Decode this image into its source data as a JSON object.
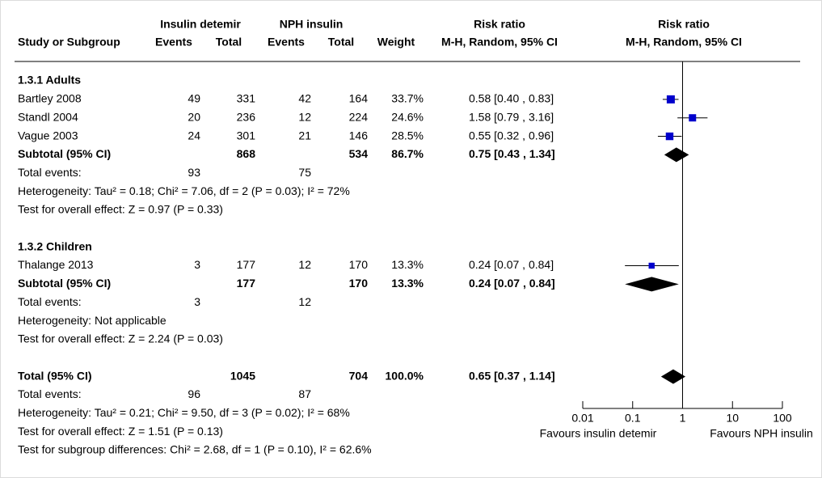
{
  "chart_data": {
    "type": "forest",
    "group_headers": [
      "Insulin detemir",
      "NPH insulin"
    ],
    "columns": [
      "Study or Subgroup",
      "Events",
      "Total",
      "Events",
      "Total",
      "Weight",
      "M-H, Random, 95% CI"
    ],
    "plot_title": "Risk ratio",
    "plot_method": "M-H, Random, 95% CI",
    "subgroups": [
      {
        "title": "1.3.1 Adults",
        "studies": [
          {
            "name": "Bartley 2008",
            "events1": 49,
            "total1": 331,
            "events2": 42,
            "total2": 164,
            "weight": 33.7,
            "weight_label": "33.7%",
            "rr": 0.58,
            "lo": 0.4,
            "hi": 0.83,
            "rr_label": "0.58 [0.40 , 0.83]"
          },
          {
            "name": "Standl 2004",
            "events1": 20,
            "total1": 236,
            "events2": 12,
            "total2": 224,
            "weight": 24.6,
            "weight_label": "24.6%",
            "rr": 1.58,
            "lo": 0.79,
            "hi": 3.16,
            "rr_label": "1.58 [0.79 , 3.16]"
          },
          {
            "name": "Vague 2003",
            "events1": 24,
            "total1": 301,
            "events2": 21,
            "total2": 146,
            "weight": 28.5,
            "weight_label": "28.5%",
            "rr": 0.55,
            "lo": 0.32,
            "hi": 0.96,
            "rr_label": "0.55 [0.32 , 0.96]"
          }
        ],
        "subtotal": {
          "name": "Subtotal (95% CI)",
          "total1": 868,
          "total2": 534,
          "weight": 86.7,
          "weight_label": "86.7%",
          "rr": 0.75,
          "lo": 0.43,
          "hi": 1.34,
          "rr_label": "0.75 [0.43 , 1.34]"
        },
        "events": {
          "name": "Total events:",
          "events1": 93,
          "events2": 75
        },
        "heterogeneity": "Heterogeneity: Tau² = 0.18; Chi² = 7.06, df = 2 (P = 0.03); I² = 72%",
        "overall_effect": "Test for overall effect: Z = 0.97 (P = 0.33)"
      },
      {
        "title": "1.3.2 Children",
        "studies": [
          {
            "name": "Thalange 2013",
            "events1": 3,
            "total1": 177,
            "events2": 12,
            "total2": 170,
            "weight": 13.3,
            "weight_label": "13.3%",
            "rr": 0.24,
            "lo": 0.07,
            "hi": 0.84,
            "rr_label": "0.24 [0.07 , 0.84]"
          }
        ],
        "subtotal": {
          "name": "Subtotal (95% CI)",
          "total1": 177,
          "total2": 170,
          "weight": 13.3,
          "weight_label": "13.3%",
          "rr": 0.24,
          "lo": 0.07,
          "hi": 0.84,
          "rr_label": "0.24 [0.07 , 0.84]"
        },
        "events": {
          "name": "Total events:",
          "events1": 3,
          "events2": 12
        },
        "heterogeneity": "Heterogeneity: Not applicable",
        "overall_effect": "Test for overall effect: Z = 2.24 (P = 0.03)"
      }
    ],
    "total": {
      "name": "Total (95% CI)",
      "total1": 1045,
      "total2": 704,
      "weight": 100.0,
      "weight_label": "100.0%",
      "rr": 0.65,
      "lo": 0.37,
      "hi": 1.14,
      "rr_label": "0.65 [0.37 , 1.14]"
    },
    "total_events": {
      "name": "Total events:",
      "events1": 96,
      "events2": 87
    },
    "total_heterogeneity": "Heterogeneity: Tau² = 0.21; Chi² = 9.50, df = 3 (P = 0.02); I² = 68%",
    "total_overall_effect": "Test for overall effect: Z = 1.51 (P = 0.13)",
    "subgroup_differences": "Test for subgroup differences: Chi² = 2.68, df = 1 (P = 0.10), I² = 62.6%",
    "xscale": "log",
    "xlim": [
      0.01,
      100
    ],
    "xticks": [
      0.01,
      0.1,
      1,
      10,
      100
    ],
    "null_line": 1,
    "xlabel_left": "Favours insulin detemir",
    "xlabel_right": "Favours NPH insulin",
    "marker_color": "#0000cc"
  }
}
